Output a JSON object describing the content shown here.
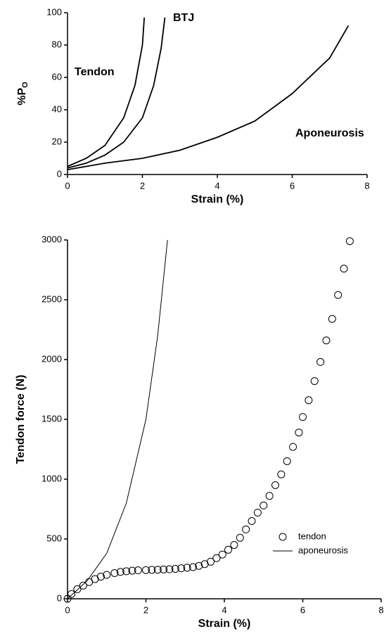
{
  "chart_data": [
    {
      "type": "line",
      "xlabel": "Strain (%)",
      "ylabel": "%P",
      "ylabel_sub": "O",
      "xlim": [
        0,
        8
      ],
      "ylim": [
        0,
        100
      ],
      "xticks": [
        0,
        2,
        4,
        6,
        8
      ],
      "yticks": [
        0,
        20,
        40,
        60,
        80,
        100
      ],
      "series": [
        {
          "name": "Tendon",
          "color": "#000000",
          "x": [
            0,
            0.5,
            1,
            1.5,
            1.8,
            2,
            2.05
          ],
          "values": [
            5,
            10,
            18,
            35,
            55,
            80,
            97
          ]
        },
        {
          "name": "BTJ",
          "color": "#000000",
          "x": [
            0,
            0.5,
            1,
            1.5,
            2,
            2.3,
            2.5,
            2.6
          ],
          "values": [
            4,
            7,
            12,
            20,
            35,
            55,
            78,
            97
          ]
        },
        {
          "name": "Aponeurosis",
          "color": "#000000",
          "x": [
            0,
            1,
            2,
            3,
            4,
            5,
            6,
            7,
            7.5
          ],
          "values": [
            3,
            7,
            10,
            15,
            23,
            33,
            50,
            72,
            92
          ]
        }
      ]
    },
    {
      "type": "scatter",
      "xlabel": "Strain (%)",
      "ylabel": "Tendon force (N)",
      "xlim": [
        0,
        8
      ],
      "ylim": [
        0,
        3000
      ],
      "xticks": [
        0,
        2,
        4,
        6,
        8
      ],
      "yticks": [
        0,
        500,
        1000,
        1500,
        2000,
        2500,
        3000
      ],
      "legend": "lower right",
      "series": [
        {
          "name": "tendon",
          "mode": "markers",
          "color": "#000000",
          "x": [
            0,
            0.1,
            0.25,
            0.4,
            0.55,
            0.7,
            0.85,
            1.0,
            1.2,
            1.35,
            1.5,
            1.65,
            1.8,
            2.0,
            2.15,
            2.3,
            2.45,
            2.6,
            2.75,
            2.9,
            3.05,
            3.2,
            3.35,
            3.5,
            3.65,
            3.8,
            3.95,
            4.1,
            4.25,
            4.4,
            4.55,
            4.7,
            4.85,
            5.0,
            5.15,
            5.3,
            5.45,
            5.6,
            5.75,
            5.9,
            6.0,
            6.15,
            6.3,
            6.45,
            6.6,
            6.75,
            6.9,
            7.05,
            7.2
          ],
          "values": [
            0,
            40,
            80,
            110,
            140,
            165,
            185,
            200,
            215,
            225,
            230,
            235,
            238,
            240,
            242,
            243,
            245,
            247,
            250,
            255,
            260,
            265,
            275,
            290,
            310,
            340,
            370,
            410,
            450,
            510,
            580,
            650,
            720,
            780,
            860,
            950,
            1040,
            1150,
            1270,
            1390,
            1520,
            1660,
            1820,
            1980,
            2160,
            2340,
            2540,
            2760,
            2990
          ]
        },
        {
          "name": "aponeurosis",
          "mode": "lines",
          "color": "#000000",
          "x": [
            0,
            0.5,
            1,
            1.5,
            2,
            2.3,
            2.55
          ],
          "values": [
            0,
            150,
            380,
            800,
            1500,
            2200,
            3000
          ]
        }
      ]
    }
  ]
}
